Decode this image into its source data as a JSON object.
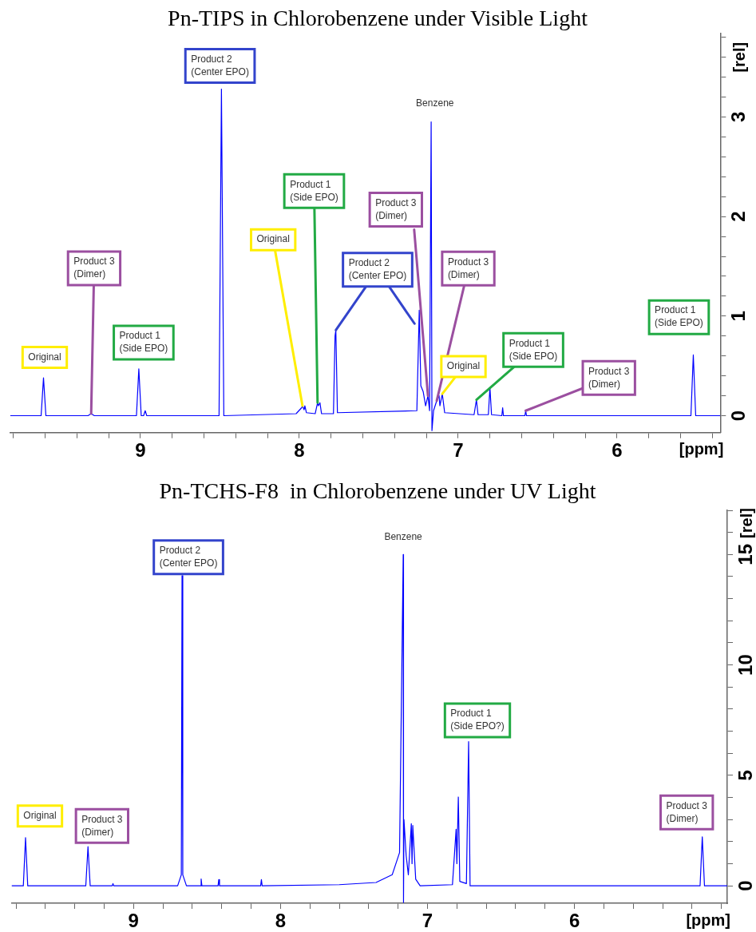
{
  "chart_data": [
    {
      "type": "line",
      "title": "Pn-TIPS in Chlorobenzene under Visible Light",
      "xlabel": "[ppm]",
      "ylabel": "[rel]",
      "xlim": [
        9.82,
        5.35
      ],
      "ylim": [
        -0.17,
        3.84
      ],
      "xticks": [
        {
          "value": 9.8,
          "label": null
        },
        {
          "value": 9.6,
          "label": null
        },
        {
          "value": 9.4,
          "label": null
        },
        {
          "value": 9.2,
          "label": null
        },
        9,
        {
          "value": 8.8,
          "label": null
        },
        {
          "value": 8.6,
          "label": null
        },
        {
          "value": 8.4,
          "label": null
        },
        {
          "value": 8.2,
          "label": null
        },
        8,
        {
          "value": 7.8,
          "label": null
        },
        {
          "value": 7.6,
          "label": null
        },
        {
          "value": 7.4,
          "label": null
        },
        {
          "value": 7.2,
          "label": null
        },
        7,
        {
          "value": 6.8,
          "label": null
        },
        {
          "value": 6.6,
          "label": null
        },
        {
          "value": 6.4,
          "label": null
        },
        {
          "value": 6.2,
          "label": null
        },
        6,
        {
          "value": 5.8,
          "label": null
        },
        {
          "value": 5.6,
          "label": null
        },
        {
          "value": 5.4,
          "label": null
        }
      ],
      "yticks": [
        0,
        {
          "value": 0.2,
          "label": null
        },
        {
          "value": 0.4,
          "label": null
        },
        {
          "value": 0.6,
          "label": null
        },
        {
          "value": 0.8,
          "label": null
        },
        1,
        {
          "value": 1.2,
          "label": null
        },
        {
          "value": 1.4,
          "label": null
        },
        {
          "value": 1.6,
          "label": null
        },
        {
          "value": 1.8,
          "label": null
        },
        2,
        {
          "value": 2.2,
          "label": null
        },
        {
          "value": 2.4,
          "label": null
        },
        {
          "value": 2.6,
          "label": null
        },
        {
          "value": 2.8,
          "label": null
        },
        3,
        {
          "value": 3.2,
          "label": null
        },
        {
          "value": 3.4,
          "label": null
        },
        {
          "value": 3.6,
          "label": null
        },
        {
          "value": 3.8,
          "label": null
        }
      ],
      "marker": "none",
      "line_style": "solid",
      "series": [
        {
          "color": "#0000ff",
          "x": [
            9.82,
            9.625,
            9.61,
            9.595,
            9.33,
            9.31,
            9.29,
            9.025,
            9.01,
            8.995,
            8.98,
            8.97,
            8.96,
            8.505,
            8.49,
            8.475,
            8.02,
            7.985,
            7.98,
            7.97,
            7.965,
            7.955,
            7.9,
            7.885,
            7.88,
            7.87,
            7.86,
            7.785,
            7.775,
            7.77,
            7.76,
            7.26,
            7.245,
            7.235,
            7.22,
            7.205,
            7.19,
            7.18,
            7.17,
            7.165,
            7.155,
            7.135,
            7.12,
            7.115,
            7.1,
            7.085,
            6.9,
            6.885,
            6.875,
            6.81,
            6.8,
            6.79,
            6.725,
            6.72,
            6.715,
            6.58,
            6.575,
            6.57,
            5.535,
            5.52,
            5.505,
            5.35
          ],
          "values": [
            0,
            0,
            0.38,
            0,
            0,
            0.02,
            0,
            0,
            0.47,
            0,
            0,
            0.05,
            0,
            0,
            3.28,
            0,
            0.02,
            0.08,
            0.1,
            0.06,
            0.1,
            0.03,
            0.02,
            0.13,
            0.1,
            0.13,
            0.02,
            0.02,
            0.8,
            0.86,
            0.03,
            0.05,
            1.06,
            0.3,
            0.24,
            0.1,
            0.2,
            0.05,
            2.95,
            -0.15,
            0.05,
            0.15,
            0.2,
            0.1,
            0.22,
            0.03,
            0.01,
            0.16,
            0.01,
            0.01,
            0.28,
            0.01,
            0,
            0.08,
            0,
            0,
            0.05,
            0,
            0,
            0.61,
            0,
            0
          ]
        }
      ],
      "annotations": [
        {
          "text": "Original",
          "x": 9.61,
          "y": 0.38
        },
        {
          "text": "Product 3 (Dimer)",
          "x": 9.31,
          "y": 0.02
        },
        {
          "text": "Product 1 (Side EPO)",
          "x": 9.01,
          "y": 0.47
        },
        {
          "text": "Product 2 (Center EPO)",
          "x": 8.49,
          "y": 3.28
        },
        {
          "text": "Original",
          "x": 7.98,
          "y": 0.1
        },
        {
          "text": "Product 1 (Side EPO)",
          "x": 7.885,
          "y": 0.13
        },
        {
          "text": "Product 2 (Center EPO)",
          "x": 7.77,
          "y": 0.86
        },
        {
          "text": "Product 3 (Dimer)",
          "x": 7.19,
          "y": 0.2
        },
        {
          "text": "Product 3 (Dimer)",
          "x": 7.135,
          "y": 0.15
        },
        {
          "text": "Original",
          "x": 7.1,
          "y": 0.22
        },
        {
          "text": "Product 1 (Side EPO)",
          "x": 6.885,
          "y": 0.16
        },
        {
          "text": "Product 3 (Dimer)",
          "x": 6.575,
          "y": 0.05
        },
        {
          "text": "Product 1 (Side EPO)",
          "x": 5.52,
          "y": 0.61
        },
        {
          "text": "Benzene",
          "x": 7.17,
          "y": 2.95
        }
      ]
    },
    {
      "type": "line",
      "title": "Pn-TCHS-F8  in Chlorobenzene under UV Light",
      "xlabel": "[ppm]",
      "ylabel": "[rel]",
      "xlim": [
        9.83,
        4.96
      ],
      "ylim": [
        -0.79,
        17
      ],
      "xticks": [
        {
          "value": 9.8,
          "label": null
        },
        {
          "value": 9.6,
          "label": null
        },
        {
          "value": 9.4,
          "label": null
        },
        {
          "value": 9.2,
          "label": null
        },
        9,
        {
          "value": 8.8,
          "label": null
        },
        {
          "value": 8.6,
          "label": null
        },
        {
          "value": 8.4,
          "label": null
        },
        {
          "value": 8.2,
          "label": null
        },
        8,
        {
          "value": 7.8,
          "label": null
        },
        {
          "value": 7.6,
          "label": null
        },
        {
          "value": 7.4,
          "label": null
        },
        {
          "value": 7.2,
          "label": null
        },
        7,
        {
          "value": 6.8,
          "label": null
        },
        {
          "value": 6.6,
          "label": null
        },
        {
          "value": 6.4,
          "label": null
        },
        {
          "value": 6.2,
          "label": null
        },
        6,
        {
          "value": 5.8,
          "label": null
        },
        {
          "value": 5.6,
          "label": null
        },
        {
          "value": 5.4,
          "label": null
        },
        {
          "value": 5.2,
          "label": null
        },
        {
          "value": 5,
          "label": null
        }
      ],
      "yticks": [
        0,
        {
          "value": 1,
          "label": null
        },
        {
          "value": 2,
          "label": null
        },
        {
          "value": 3,
          "label": null
        },
        {
          "value": 4,
          "label": null
        },
        5,
        {
          "value": 6,
          "label": null
        },
        {
          "value": 7,
          "label": null
        },
        {
          "value": 8,
          "label": null
        },
        {
          "value": 9,
          "label": null
        },
        10,
        {
          "value": 11,
          "label": null
        },
        {
          "value": 12,
          "label": null
        },
        {
          "value": 13,
          "label": null
        },
        {
          "value": 14,
          "label": null
        },
        15,
        {
          "value": 16,
          "label": null
        },
        {
          "value": 17,
          "label": null
        }
      ],
      "marker": "none",
      "line_style": "solid",
      "series": [
        {
          "color": "#0000ff",
          "x": [
            9.83,
            9.75,
            9.735,
            9.72,
            9.325,
            9.31,
            9.295,
            9.145,
            9.14,
            9.135,
            8.7,
            8.675,
            8.67,
            8.665,
            8.64,
            8.545,
            8.54,
            8.535,
            8.425,
            8.42,
            8.415,
            8.135,
            8.13,
            8.125,
            7.6,
            7.35,
            7.24,
            7.19,
            7.165,
            7.163,
            7.16,
            7.145,
            7.13,
            7.11,
            7.105,
            7.1,
            7.08,
            7.05,
            6.83,
            6.805,
            6.8,
            6.79,
            6.78,
            6.735,
            6.72,
            6.71,
            5.145,
            5.13,
            5.115,
            4.96
          ],
          "values": [
            0,
            0,
            2.18,
            0,
            0,
            1.77,
            0,
            0,
            0.1,
            0,
            0,
            0.5,
            14.04,
            0.5,
            0,
            0,
            0.31,
            0,
            0,
            0.28,
            0,
            0,
            0.28,
            0,
            0.05,
            0.15,
            0.5,
            1.5,
            15,
            -0.75,
            3,
            1.37,
            0.5,
            2.81,
            1,
            2.73,
            0.3,
            0,
            0.05,
            2.56,
            1,
            4.02,
            0.2,
            0.1,
            6.53,
            0,
            0,
            2.22,
            0,
            0
          ]
        }
      ],
      "annotations": [
        {
          "text": "Original",
          "x": 9.735,
          "y": 2.18
        },
        {
          "text": "Product 3 (Dimer)",
          "x": 9.31,
          "y": 1.77
        },
        {
          "text": "Product 2 (Center EPO)",
          "x": 8.67,
          "y": 14.04
        },
        {
          "text": "Benzene",
          "x": 7.165,
          "y": 15
        },
        {
          "text": "Product 1 (Side EPO?)",
          "x": 6.72,
          "y": 6.53
        },
        {
          "text": "Product 3 (Dimer)",
          "x": 5.13,
          "y": 2.22
        }
      ]
    }
  ]
}
